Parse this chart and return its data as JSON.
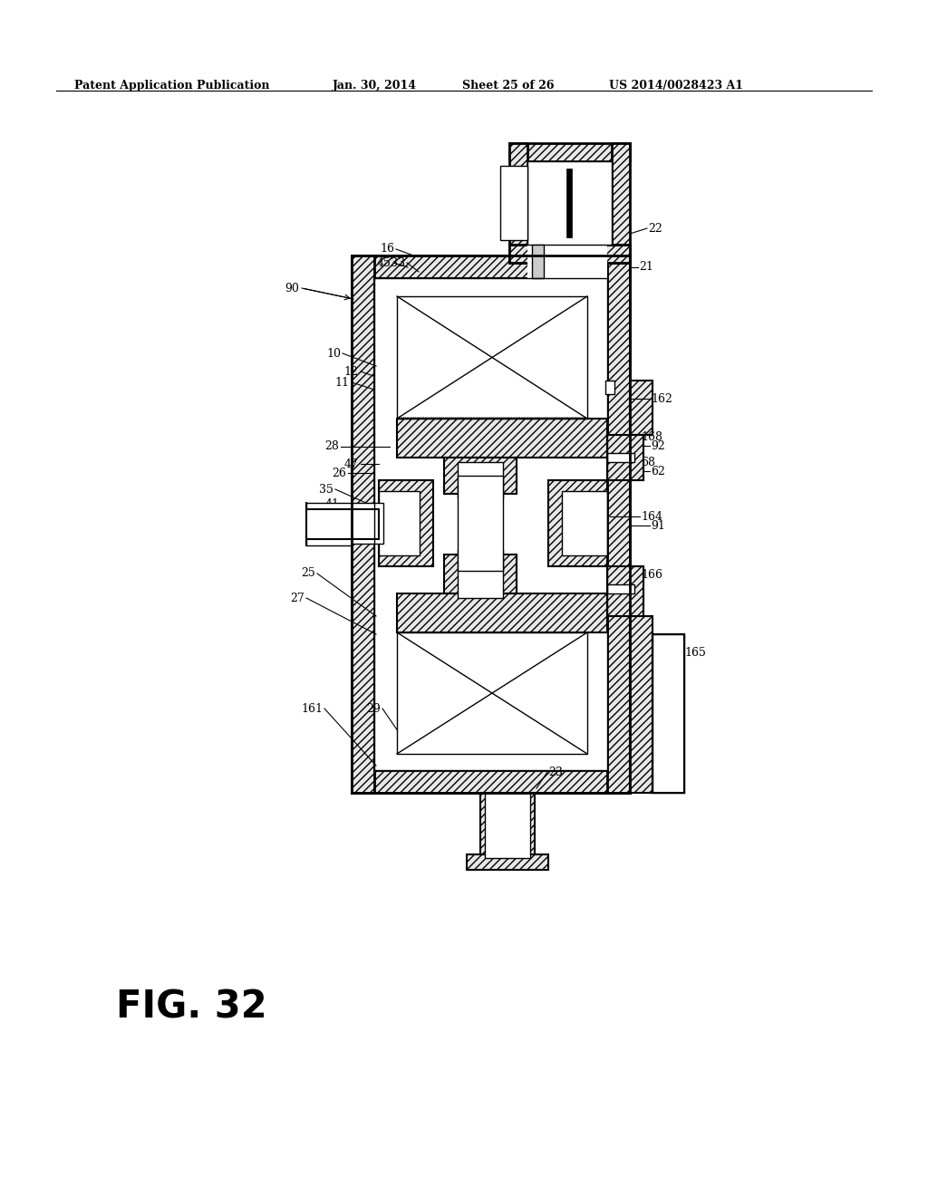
{
  "title_line1": "Patent Application Publication",
  "title_date": "Jan. 30, 2014",
  "title_sheet": "Sheet 25 of 26",
  "title_patent": "US 2014/0028423 A1",
  "fig_label": "FIG. 32",
  "background_color": "#ffffff"
}
